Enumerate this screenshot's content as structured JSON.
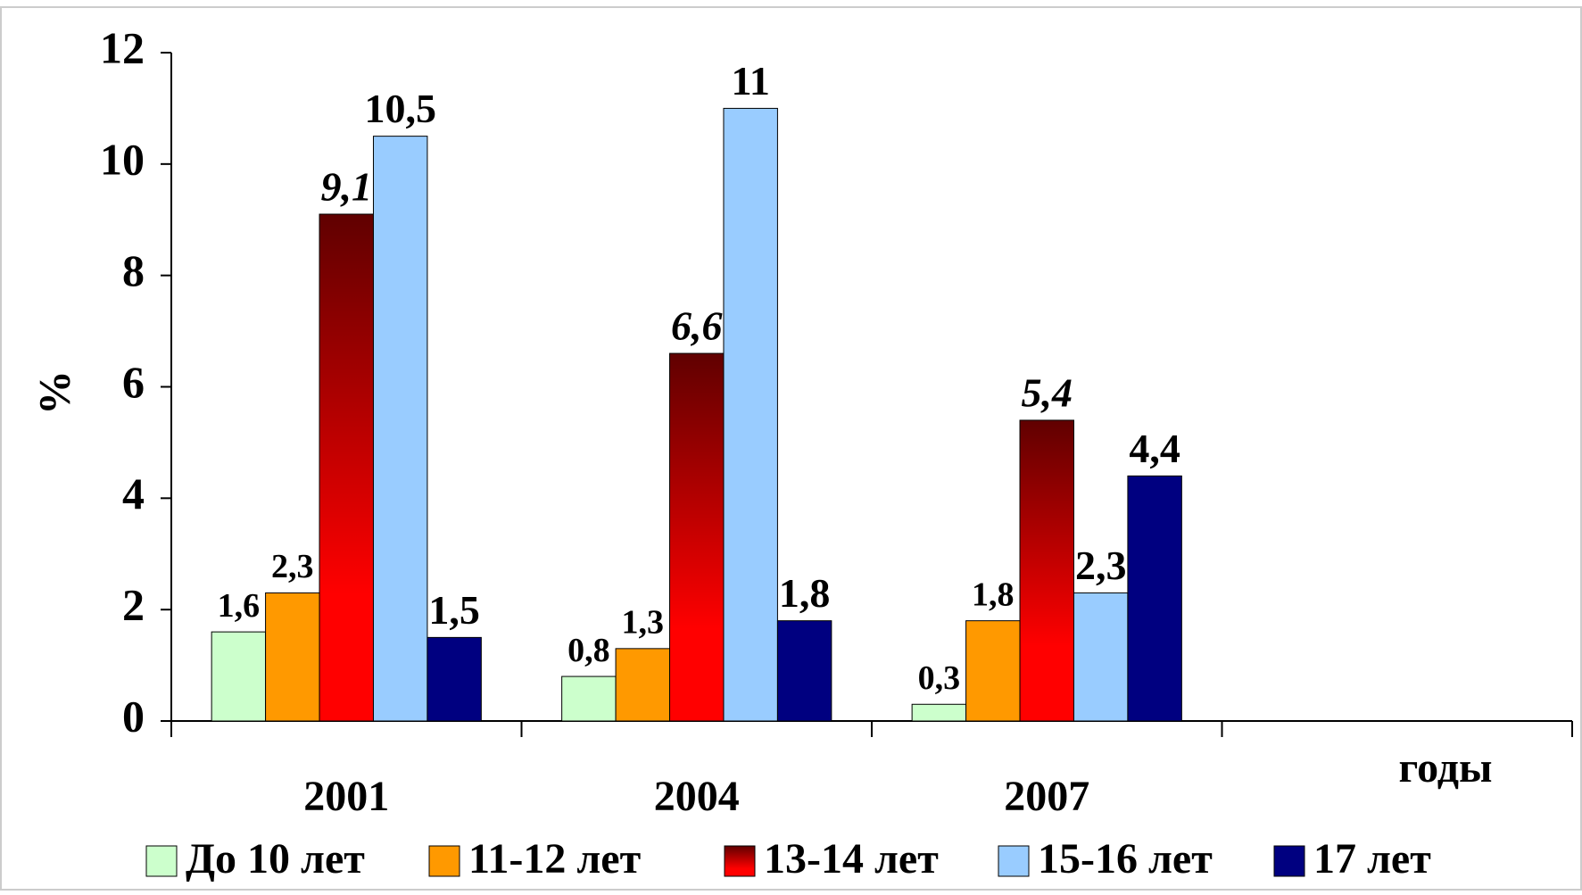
{
  "chart_data": {
    "type": "bar",
    "categories": [
      "2001",
      "2004",
      "2007",
      null
    ],
    "series": [
      {
        "name": "До 10 лет",
        "color": "#ccffcc",
        "values": [
          1.6,
          0.8,
          0.3,
          null
        ],
        "value_labels": [
          "1,6",
          "0,8",
          "0,3",
          null
        ]
      },
      {
        "name": "11-12 лет",
        "color": "#ff9900",
        "values": [
          2.3,
          1.3,
          1.8,
          null
        ],
        "value_labels": [
          "2,3",
          "1,3",
          "1,8",
          null
        ]
      },
      {
        "name": "13-14 лет",
        "color": "#ff0000",
        "values": [
          9.1,
          6.6,
          5.4,
          null
        ],
        "value_labels": [
          "9,1",
          "6,6",
          "5,4",
          null
        ]
      },
      {
        "name": "15-16 лет",
        "color": "#99ccff",
        "values": [
          10.5,
          11,
          2.3,
          null
        ],
        "value_labels": [
          "10,5",
          "11",
          "2,3",
          null
        ]
      },
      {
        "name": "17 лет",
        "color": "#000080",
        "values": [
          1.5,
          1.8,
          4.4,
          null
        ],
        "value_labels": [
          "1,5",
          "1,8",
          "4,4",
          null
        ]
      }
    ],
    "y_label": "%",
    "x_label": "годы",
    "ylim": [
      0,
      12
    ],
    "yticks": [
      0,
      2,
      4,
      6,
      8,
      10,
      12
    ],
    "grid": false,
    "legend": "bottom"
  }
}
